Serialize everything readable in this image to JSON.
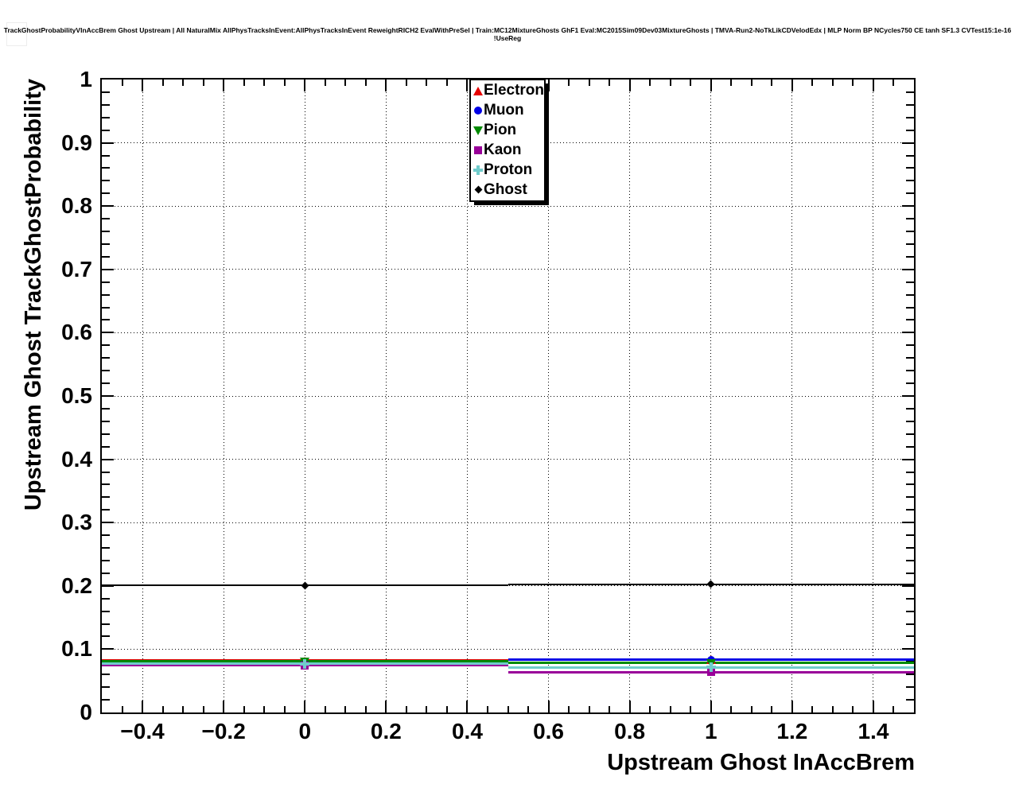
{
  "chart_data": {
    "type": "line",
    "title": "TrackGhostProbabilityVInAccBrem Ghost Upstream | All NaturalMix AllPhysTracksInEvent:AllPhysTracksInEvent ReweightRICH2 EvalWithPreSel | Train:MC12MixtureGhosts GhF1 Eval:MC2015Sim09Dev03MixtureGhosts | TMVA-Run2-NoTkLikCDVelodEdx | MLP Norm BP NCycles750 CE tanh SF1.3 CVTest15:1e-16 !UseReg",
    "xlabel": "Upstream Ghost InAccBrem",
    "ylabel": "Upstream Ghost TrackGhostProbability",
    "xlim": [
      -0.5,
      1.5
    ],
    "ylim": [
      0,
      1
    ],
    "grid": true,
    "grid_style": "dotted",
    "legend_position": "top-center",
    "background": "#ffffff",
    "x": [
      0,
      1
    ],
    "bin_edges": [
      -0.5,
      0.5,
      1.5
    ],
    "x_tick_values": [
      -0.4,
      -0.2,
      0,
      0.2,
      0.4,
      0.6,
      0.8,
      1,
      1.2,
      1.4
    ],
    "x_tick_labels": [
      "−0.4",
      "−0.2",
      "0",
      "0.2",
      "0.4",
      "0.6",
      "0.8",
      "1",
      "1.2",
      "1.4"
    ],
    "x_minor_tick_step": 0.05,
    "y_tick_values": [
      0,
      0.1,
      0.2,
      0.3,
      0.4,
      0.5,
      0.6,
      0.7,
      0.8,
      0.9,
      1
    ],
    "y_tick_labels": [
      "0",
      "0.1",
      "0.2",
      "0.3",
      "0.4",
      "0.5",
      "0.6",
      "0.7",
      "0.8",
      "0.9",
      "1"
    ],
    "y_minor_tick_step": 0.02,
    "series": [
      {
        "name": "Electron",
        "color": "#e60000",
        "marker": "triangle-up",
        "values": [
          0.082,
          0.084
        ]
      },
      {
        "name": "Muon",
        "color": "#0000e6",
        "marker": "circle",
        "values": [
          0.0785,
          0.083
        ]
      },
      {
        "name": "Pion",
        "color": "#008a00",
        "marker": "triangle-down",
        "values": [
          0.0805,
          0.078
        ]
      },
      {
        "name": "Kaon",
        "color": "#990099",
        "marker": "square",
        "values": [
          0.0745,
          0.064
        ]
      },
      {
        "name": "Proton",
        "color": "#70cccc",
        "marker": "plus",
        "values": [
          0.0772,
          0.071
        ]
      },
      {
        "name": "Ghost",
        "color": "#000000",
        "marker": "diamond",
        "values": [
          0.2005,
          0.2025
        ]
      }
    ]
  }
}
